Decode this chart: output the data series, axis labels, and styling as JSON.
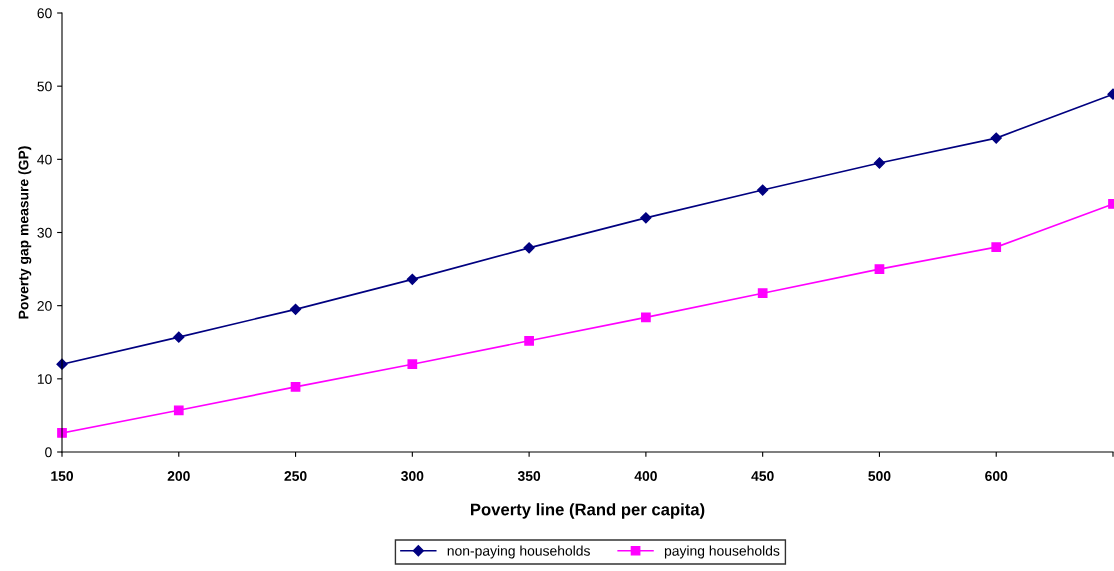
{
  "chart_data": {
    "type": "line",
    "xlabel": "Poverty line (Rand per capita)",
    "ylabel": "Poverty gap measure (GP)",
    "categories": [
      "150",
      "200",
      "250",
      "300",
      "350",
      "400",
      "450",
      "500",
      "600",
      null
    ],
    "series": [
      {
        "name": "non-paying households",
        "color": "#000080",
        "marker": "diamond",
        "values": [
          12.0,
          15.7,
          19.5,
          23.6,
          27.9,
          32.0,
          35.8,
          39.5,
          42.9,
          48.9
        ]
      },
      {
        "name": "paying households",
        "color": "#ff00ff",
        "marker": "square",
        "values": [
          2.6,
          5.7,
          8.9,
          12.0,
          15.2,
          18.4,
          21.7,
          25.0,
          28.0,
          33.9
        ]
      }
    ],
    "ylim": [
      0,
      60
    ],
    "yticks": [
      0,
      10,
      20,
      30,
      40,
      50,
      60
    ],
    "grid": false,
    "legend": "bottom",
    "line_style": "solid"
  }
}
